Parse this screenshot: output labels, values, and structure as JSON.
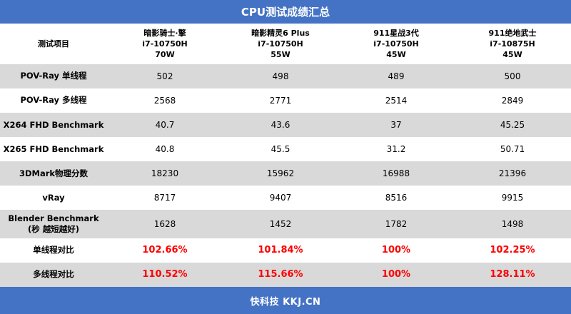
{
  "title": "CPU测试成绩汇总",
  "footer": "快科技 KKJ.CN",
  "header": {
    "label": "测试项目",
    "columns": [
      {
        "name": "暗影骑士·擎",
        "cpu": "i7-10750H",
        "power": "70W"
      },
      {
        "name": "暗影精灵6 Plus",
        "cpu": "i7-10750H",
        "power": "55W"
      },
      {
        "name": "911星战3代",
        "cpu": "i7-10750H",
        "power": "45W"
      },
      {
        "name": "911绝地武士",
        "cpu": "i7-10875H",
        "power": "45W"
      }
    ]
  },
  "rows": [
    {
      "label": "POV-Ray 单线程",
      "label2": "",
      "values": [
        "502",
        "498",
        "489",
        "500"
      ],
      "shade": true,
      "red": false
    },
    {
      "label": "POV-Ray 多线程",
      "label2": "",
      "values": [
        "2568",
        "2771",
        "2514",
        "2849"
      ],
      "shade": false,
      "red": false
    },
    {
      "label": "X264 FHD Benchmark",
      "label2": "",
      "values": [
        "40.7",
        "43.6",
        "37",
        "45.25"
      ],
      "shade": true,
      "red": false
    },
    {
      "label": "X265 FHD Benchmark",
      "label2": "",
      "values": [
        "40.8",
        "45.5",
        "31.2",
        "50.71"
      ],
      "shade": false,
      "red": false
    },
    {
      "label": "3DMark物理分数",
      "label2": "",
      "values": [
        "18230",
        "15962",
        "16988",
        "21396"
      ],
      "shade": true,
      "red": false
    },
    {
      "label": "vRay",
      "label2": "",
      "values": [
        "8717",
        "9407",
        "8516",
        "9915"
      ],
      "shade": false,
      "red": false
    },
    {
      "label": "Blender Benchmark",
      "label2": "(秒 越短越好)",
      "values": [
        "1628",
        "1452",
        "1782",
        "1498"
      ],
      "shade": true,
      "red": false
    },
    {
      "label": "单线程对比",
      "label2": "",
      "values": [
        "102.66%",
        "101.84%",
        "100%",
        "102.25%"
      ],
      "shade": false,
      "red": true
    },
    {
      "label": "多线程对比",
      "label2": "",
      "values": [
        "110.52%",
        "115.66%",
        "100%",
        "128.11%"
      ],
      "shade": true,
      "red": true
    }
  ],
  "colors": {
    "bar": "#4472c4",
    "shade": "#d9d9d9",
    "highlight": "#ff0000"
  }
}
